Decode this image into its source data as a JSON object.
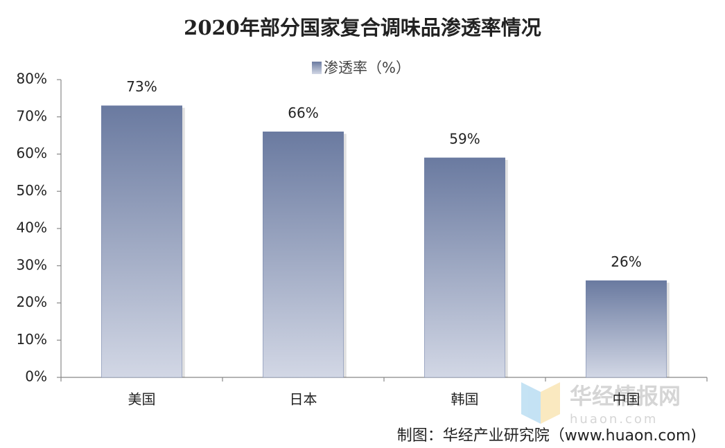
{
  "chart_data": {
    "type": "bar",
    "title": "2020年部分国家复合调味品渗透率情况",
    "categories": [
      "美国",
      "日本",
      "韩国",
      "中国"
    ],
    "series": [
      {
        "name": "渗透率（%）",
        "color": "#7080a6",
        "values": [
          73,
          66,
          59,
          26
        ],
        "value_labels": [
          "73%",
          "66%",
          "59%",
          "26%"
        ]
      }
    ],
    "ylim": [
      0,
      80
    ],
    "yticks": [
      {
        "value": 0,
        "label": "0%"
      },
      {
        "value": 10,
        "label": "10%"
      },
      {
        "value": 20,
        "label": "20%"
      },
      {
        "value": 30,
        "label": "30%"
      },
      {
        "value": 40,
        "label": "40%"
      },
      {
        "value": 50,
        "label": "50%"
      },
      {
        "value": 60,
        "label": "60%"
      },
      {
        "value": 70,
        "label": "70%"
      },
      {
        "value": 80,
        "label": "80%"
      }
    ],
    "grid": false,
    "legend": "top",
    "source": "制图：华经产业研究院（www.huaon.com)",
    "watermark": {
      "text": "华经情报网",
      "url": "huaon.com"
    }
  }
}
